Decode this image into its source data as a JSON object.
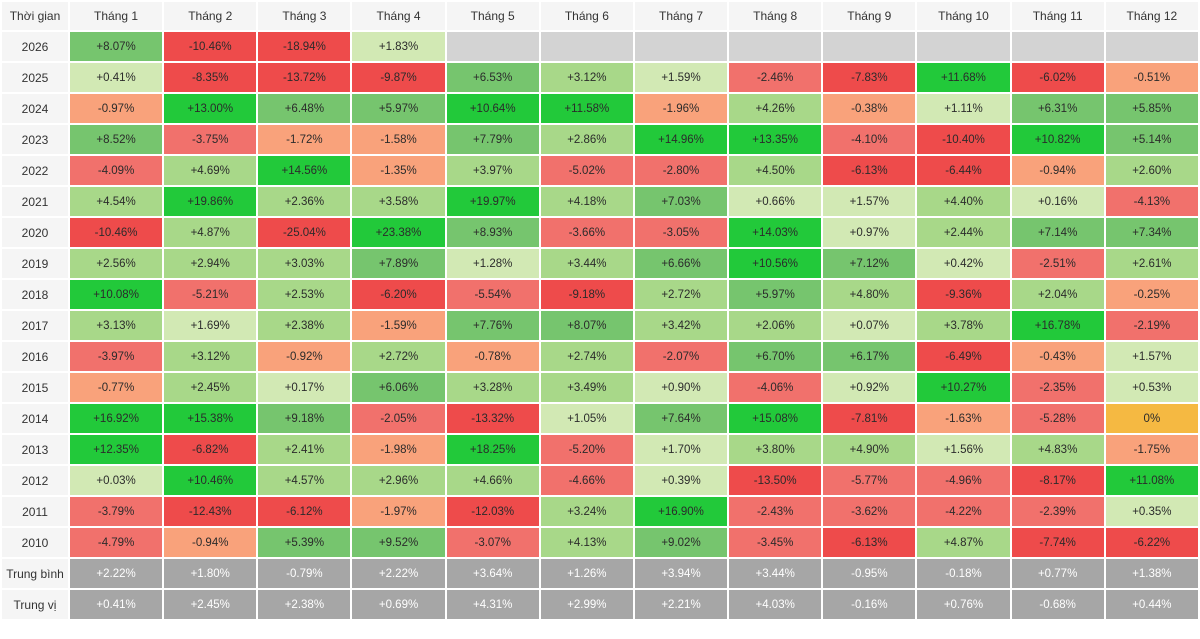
{
  "chart_data": {
    "type": "heatmap",
    "corner_label": "Thời gian",
    "columns": [
      "Tháng 1",
      "Tháng 2",
      "Tháng 3",
      "Tháng 4",
      "Tháng 5",
      "Tháng 6",
      "Tháng 7",
      "Tháng 8",
      "Tháng 9",
      "Tháng 10",
      "Tháng 11",
      "Tháng 12"
    ],
    "rows": [
      {
        "label": "2026",
        "values": [
          "+8.07%",
          "-10.46%",
          "-18.94%",
          "+1.83%",
          null,
          null,
          null,
          null,
          null,
          null,
          null,
          null
        ]
      },
      {
        "label": "2025",
        "values": [
          "+0.41%",
          "-8.35%",
          "-13.72%",
          "-9.87%",
          "+6.53%",
          "+3.12%",
          "+1.59%",
          "-2.46%",
          "-7.83%",
          "+11.68%",
          "-6.02%",
          "-0.51%"
        ]
      },
      {
        "label": "2024",
        "values": [
          "-0.97%",
          "+13.00%",
          "+6.48%",
          "+5.97%",
          "+10.64%",
          "+11.58%",
          "-1.96%",
          "+4.26%",
          "-0.38%",
          "+1.11%",
          "+6.31%",
          "+5.85%"
        ]
      },
      {
        "label": "2023",
        "values": [
          "+8.52%",
          "-3.75%",
          "-1.72%",
          "-1.58%",
          "+7.79%",
          "+2.86%",
          "+14.96%",
          "+13.35%",
          "-4.10%",
          "-10.40%",
          "+10.82%",
          "+5.14%"
        ]
      },
      {
        "label": "2022",
        "values": [
          "-4.09%",
          "+4.69%",
          "+14.56%",
          "-1.35%",
          "+3.97%",
          "-5.02%",
          "-2.80%",
          "+4.50%",
          "-6.13%",
          "-6.44%",
          "-0.94%",
          "+2.60%"
        ]
      },
      {
        "label": "2021",
        "values": [
          "+4.54%",
          "+19.86%",
          "+2.36%",
          "+3.58%",
          "+19.97%",
          "+4.18%",
          "+7.03%",
          "+0.66%",
          "+1.57%",
          "+4.40%",
          "+0.16%",
          "-4.13%"
        ]
      },
      {
        "label": "2020",
        "values": [
          "-10.46%",
          "+4.87%",
          "-25.04%",
          "+23.38%",
          "+8.93%",
          "-3.66%",
          "-3.05%",
          "+14.03%",
          "+0.97%",
          "+2.44%",
          "+7.14%",
          "+7.34%"
        ]
      },
      {
        "label": "2019",
        "values": [
          "+2.56%",
          "+2.94%",
          "+3.03%",
          "+7.89%",
          "+1.28%",
          "+3.44%",
          "+6.66%",
          "+10.56%",
          "+7.12%",
          "+0.42%",
          "-2.51%",
          "+2.61%"
        ]
      },
      {
        "label": "2018",
        "values": [
          "+10.08%",
          "-5.21%",
          "+2.53%",
          "-6.20%",
          "-5.54%",
          "-9.18%",
          "+2.72%",
          "+5.97%",
          "+4.80%",
          "-9.36%",
          "+2.04%",
          "-0.25%"
        ]
      },
      {
        "label": "2017",
        "values": [
          "+3.13%",
          "+1.69%",
          "+2.38%",
          "-1.59%",
          "+7.76%",
          "+8.07%",
          "+3.42%",
          "+2.06%",
          "+0.07%",
          "+3.78%",
          "+16.78%",
          "-2.19%"
        ]
      },
      {
        "label": "2016",
        "values": [
          "-3.97%",
          "+3.12%",
          "-0.92%",
          "+2.72%",
          "-0.78%",
          "+2.74%",
          "-2.07%",
          "+6.70%",
          "+6.17%",
          "-6.49%",
          "-0.43%",
          "+1.57%"
        ]
      },
      {
        "label": "2015",
        "values": [
          "-0.77%",
          "+2.45%",
          "+0.17%",
          "+6.06%",
          "+3.28%",
          "+3.49%",
          "+0.90%",
          "-4.06%",
          "+0.92%",
          "+10.27%",
          "-2.35%",
          "+0.53%"
        ]
      },
      {
        "label": "2014",
        "values": [
          "+16.92%",
          "+15.38%",
          "+9.18%",
          "-2.05%",
          "-13.32%",
          "+1.05%",
          "+7.64%",
          "+15.08%",
          "-7.81%",
          "-1.63%",
          "-5.28%",
          "0%"
        ]
      },
      {
        "label": "2013",
        "values": [
          "+12.35%",
          "-6.82%",
          "+2.41%",
          "-1.98%",
          "+18.25%",
          "-5.20%",
          "+1.70%",
          "+3.80%",
          "+4.90%",
          "+1.56%",
          "+4.83%",
          "-1.75%"
        ]
      },
      {
        "label": "2012",
        "values": [
          "+0.03%",
          "+10.46%",
          "+4.57%",
          "+2.96%",
          "+4.66%",
          "-4.66%",
          "+0.39%",
          "-13.50%",
          "-5.77%",
          "-4.96%",
          "-8.17%",
          "+11.08%"
        ]
      },
      {
        "label": "2011",
        "values": [
          "-3.79%",
          "-12.43%",
          "-6.12%",
          "-1.97%",
          "-12.03%",
          "+3.24%",
          "+16.90%",
          "-2.43%",
          "-3.62%",
          "-4.22%",
          "-2.39%",
          "+0.35%"
        ]
      },
      {
        "label": "2010",
        "values": [
          "-4.79%",
          "-0.94%",
          "+5.39%",
          "+9.52%",
          "-3.07%",
          "+4.13%",
          "+9.02%",
          "-3.45%",
          "-6.13%",
          "+4.87%",
          "-7.74%",
          "-6.22%"
        ]
      }
    ],
    "summary_rows": [
      {
        "label": "Trung bình",
        "values": [
          "+2.22%",
          "+1.80%",
          "-0.79%",
          "+2.22%",
          "+3.64%",
          "+1.26%",
          "+3.94%",
          "+3.44%",
          "-0.95%",
          "-0.18%",
          "+0.77%",
          "+1.38%"
        ]
      },
      {
        "label": "Trung vị",
        "values": [
          "+0.41%",
          "+2.45%",
          "+2.38%",
          "+0.69%",
          "+4.31%",
          "+2.99%",
          "+2.21%",
          "+4.03%",
          "-0.16%",
          "+0.76%",
          "-0.68%",
          "+0.44%"
        ]
      }
    ],
    "colors": {
      "strong_positive": "#22c93a",
      "positive": "#76c56e",
      "mild_positive": "#a8d889",
      "slight_positive": "#d2e9b4",
      "zero": "#f5b942",
      "slight_negative": "#f9a27b",
      "negative": "#f1716c",
      "strong_negative": "#ee4b4b",
      "empty": "#d3d3d3",
      "summary": "#a6a6a6",
      "summary_text": "#ffffff"
    }
  }
}
